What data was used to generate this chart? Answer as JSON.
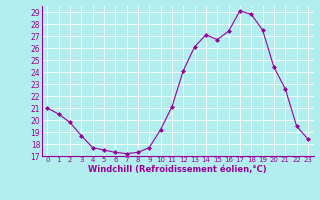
{
  "x": [
    0,
    1,
    2,
    3,
    4,
    5,
    6,
    7,
    8,
    9,
    10,
    11,
    12,
    13,
    14,
    15,
    16,
    17,
    18,
    19,
    20,
    21,
    22,
    23
  ],
  "y": [
    21,
    20.5,
    19.8,
    18.7,
    17.7,
    17.5,
    17.3,
    17.2,
    17.3,
    17.7,
    19.2,
    21.1,
    24.1,
    26.1,
    27.1,
    26.7,
    27.4,
    29.1,
    28.8,
    27.5,
    24.4,
    22.6,
    19.5,
    18.4
  ],
  "line_color": "#990099",
  "marker": "D",
  "marker_size": 2,
  "bg_color": "#b2eeee",
  "grid_color": "#ffffff",
  "xlabel": "Windchill (Refroidissement éolien,°C)",
  "xlim": [
    -0.5,
    23.5
  ],
  "ylim": [
    17,
    29.5
  ],
  "yticks": [
    17,
    18,
    19,
    20,
    21,
    22,
    23,
    24,
    25,
    26,
    27,
    28,
    29
  ],
  "xticks": [
    0,
    1,
    2,
    3,
    4,
    5,
    6,
    7,
    8,
    9,
    10,
    11,
    12,
    13,
    14,
    15,
    16,
    17,
    18,
    19,
    20,
    21,
    22,
    23
  ],
  "tick_color": "#990099",
  "label_color": "#990099",
  "spine_color": "#990099",
  "font_size_label": 6,
  "font_size_tick_x": 5,
  "font_size_tick_y": 5.5
}
